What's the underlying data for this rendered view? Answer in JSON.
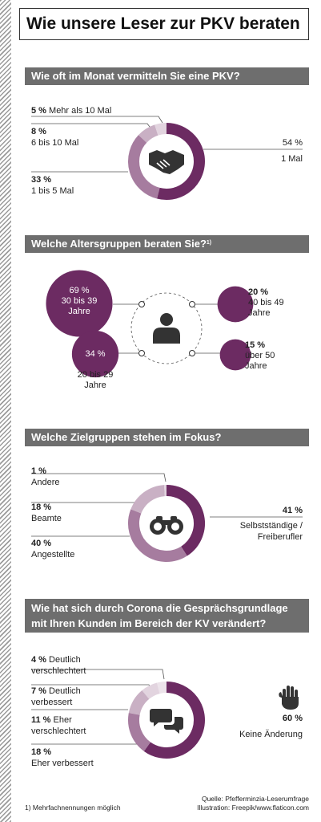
{
  "title": "Wie unsere Leser zur PKV beraten",
  "colors": {
    "dark": "#6c2b62",
    "mid": "#a67c9f",
    "light": "#c9b0c4",
    "lighter": "#e2d4df",
    "band": "#6e6e6e"
  },
  "sections": {
    "s1": {
      "heading": "Wie oft im Monat vermitteln Sie eine PKV?",
      "icon": "handshake-icon"
    },
    "s2": {
      "heading": "Welche Altersgruppen beraten Sie?",
      "footnote_mark": "1)",
      "icon": "person-icon"
    },
    "s3": {
      "heading": "Welche Zielgruppen stehen im Fokus?",
      "icon": "binoculars-icon"
    },
    "s4": {
      "heading_line1": "Wie hat sich durch Corona die Gesprächsgrundlage",
      "heading_line2": "mit Ihren Kunden im Bereich der KV verändert?",
      "icons": [
        "speech-bubbles-icon",
        "raised-hand-icon"
      ]
    }
  },
  "chart_data": [
    {
      "type": "pie",
      "title": "Wie oft im Monat vermitteln Sie eine PKV?",
      "categories": [
        "1 Mal",
        "1 bis 5 Mal",
        "6 bis 10 Mal",
        "Mehr als 10 Mal"
      ],
      "values": [
        54,
        33,
        8,
        5
      ],
      "labels": {
        "a": {
          "pct": "54 %",
          "text": "1 Mal"
        },
        "b": {
          "pct": "33 %",
          "text": "1 bis 5 Mal"
        },
        "c": {
          "pct": "8 %",
          "text": "6 bis 10 Mal"
        },
        "d": {
          "pct": "5 %",
          "text": "Mehr als 10 Mal"
        }
      }
    },
    {
      "type": "bubble",
      "title": "Welche Altersgruppen beraten Sie?",
      "categories": [
        "30 bis 39 Jahre",
        "20 bis 29 Jahre",
        "40 bis 49 Jahre",
        "über 50 Jahre"
      ],
      "values": [
        69,
        34,
        20,
        15
      ],
      "labels": {
        "a": {
          "pct": "69 %",
          "line1": "30 bis 39",
          "line2": "Jahre"
        },
        "b": {
          "pct": "34 %",
          "line1": "20 bis 29",
          "line2": "Jahre"
        },
        "c": {
          "pct": "20 %",
          "line1": "40 bis 49",
          "line2": "Jahre"
        },
        "d": {
          "pct": "15 %",
          "line1": "über 50",
          "line2": "Jahre"
        }
      }
    },
    {
      "type": "pie",
      "title": "Welche Zielgruppen stehen im Fokus?",
      "categories": [
        "Selbstständige/Freiberufler",
        "Angestellte",
        "Beamte",
        "Andere"
      ],
      "values": [
        41,
        40,
        18,
        1
      ],
      "labels": {
        "a": {
          "pct": "41 %",
          "line1": "Selbstständige /",
          "line2": "Freiberufler"
        },
        "b": {
          "pct": "40 %",
          "text": "Angestellte"
        },
        "c": {
          "pct": "18 %",
          "text": "Beamte"
        },
        "d": {
          "pct": "1 %",
          "text": "Andere"
        }
      }
    },
    {
      "type": "pie",
      "title": "Wie hat sich durch Corona die Gesprächsgrundlage mit Ihren Kunden im Bereich der KV verändert?",
      "categories": [
        "Keine Änderung",
        "Eher verbessert",
        "Eher verschlechtert",
        "Deutlich verbessert",
        "Deutlich verschlechtert"
      ],
      "values": [
        60,
        18,
        11,
        7,
        4
      ],
      "labels": {
        "a": {
          "pct": "60 %",
          "text": "Keine Änderung"
        },
        "b": {
          "pct": "18 %",
          "text": "Eher verbessert"
        },
        "c": {
          "pct": "11 %",
          "line1": "Eher",
          "line2": "verschlechtert"
        },
        "d": {
          "pct": "7 %",
          "line1": "Deutlich",
          "line2": "verbessert"
        },
        "e": {
          "pct": "4 %",
          "line1": "Deutlich",
          "line2": "verschlechtert"
        }
      }
    }
  ],
  "footer": {
    "footnote": "1) Mehrfachnennungen möglich",
    "source": "Quelle: Pfefferminzia-Leserumfrage",
    "illustration": "Illustration: Freepik/www.flaticon.com"
  }
}
